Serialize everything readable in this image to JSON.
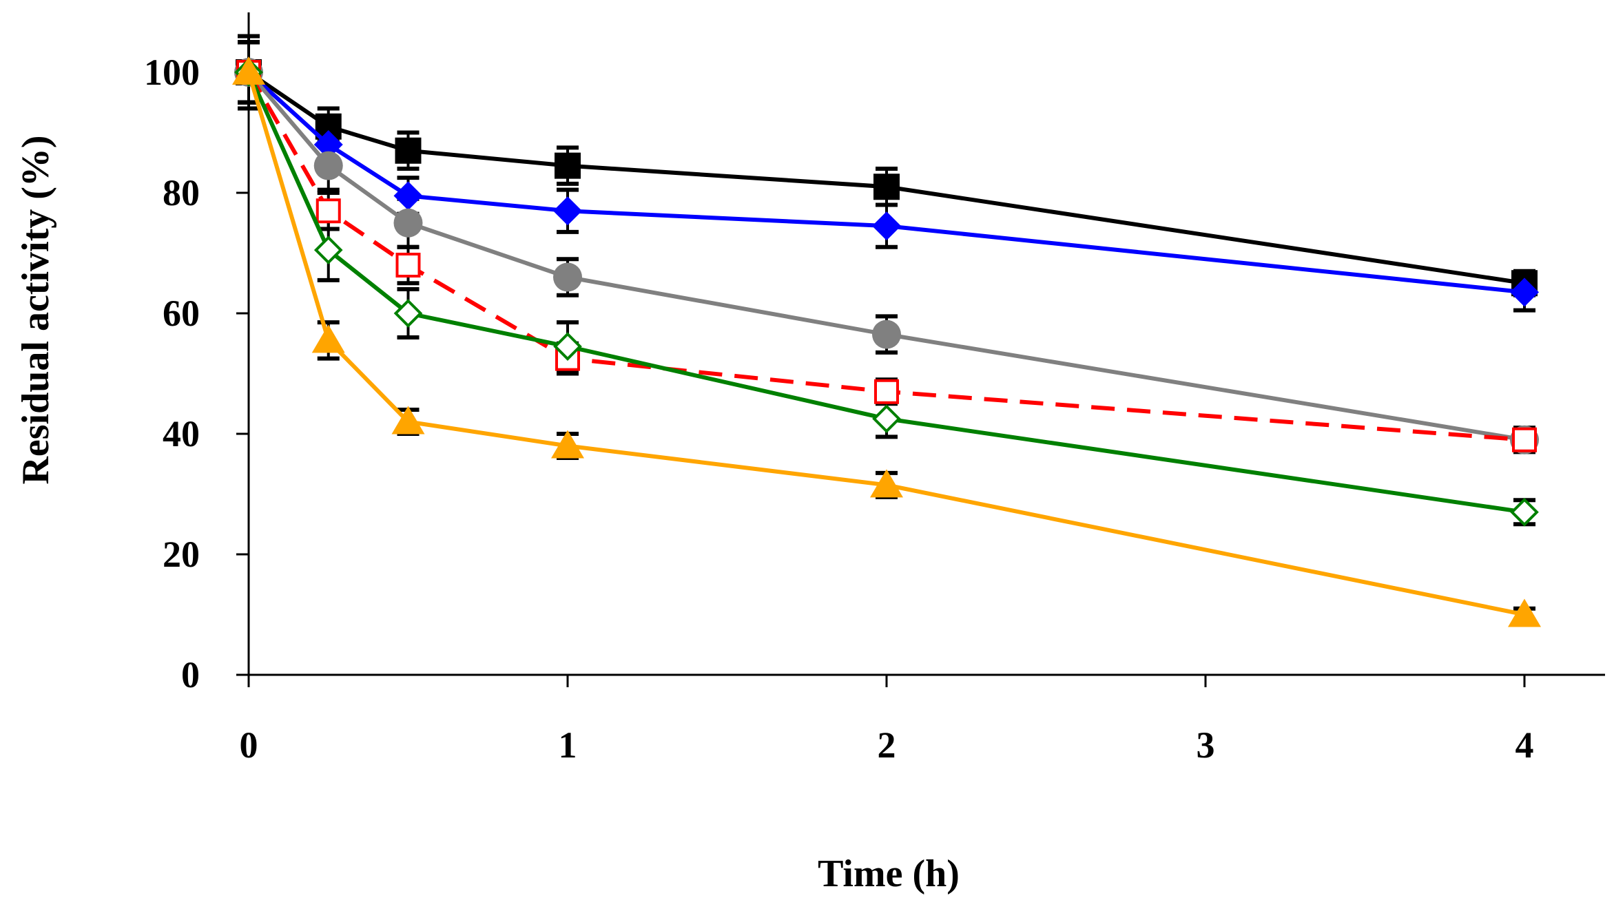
{
  "chart_data": {
    "type": "line",
    "title": "",
    "xlabel": "Time (h)",
    "ylabel": "Residual activity (%)",
    "xlim": [
      0,
      4.25
    ],
    "ylim": [
      0,
      110
    ],
    "x_ticks": [
      "0",
      "1",
      "2",
      "3",
      "4"
    ],
    "y_ticks": [
      "0",
      "20",
      "40",
      "60",
      "80",
      "100"
    ],
    "grid": false,
    "legend": "none",
    "series": [
      {
        "name": "black-filled-square",
        "color": "#000000",
        "marker": "square-filled",
        "dash": "solid",
        "x": [
          0,
          0.25,
          0.5,
          1,
          2,
          4
        ],
        "values": [
          100,
          91,
          87,
          84.5,
          81,
          65
        ],
        "errors": [
          6,
          3,
          3,
          3,
          3,
          2
        ]
      },
      {
        "name": "blue-filled-diamond",
        "color": "#0000ff",
        "marker": "diamond-filled",
        "dash": "solid",
        "x": [
          0,
          0.25,
          0.5,
          1,
          2,
          4
        ],
        "values": [
          100,
          88,
          79.5,
          77,
          74.5,
          63.5
        ],
        "errors": [
          5,
          3,
          3,
          3.5,
          3.5,
          3
        ]
      },
      {
        "name": "gray-filled-circle",
        "color": "#808080",
        "marker": "circle-filled",
        "dash": "solid",
        "x": [
          0,
          0.25,
          0.5,
          1,
          2,
          4
        ],
        "values": [
          100,
          84.5,
          75,
          66,
          56.5,
          39
        ],
        "errors": [
          5,
          4,
          4,
          3,
          3,
          2
        ]
      },
      {
        "name": "red-open-square",
        "color": "#ff0000",
        "marker": "square-open",
        "dash": "dashed",
        "x": [
          0,
          0.25,
          0.5,
          1,
          2,
          4
        ],
        "values": [
          100,
          77,
          68,
          52.5,
          47,
          39
        ],
        "errors": [
          5,
          3,
          3,
          2.5,
          2,
          2
        ]
      },
      {
        "name": "green-open-diamond",
        "color": "#008000",
        "marker": "diamond-open",
        "dash": "solid",
        "x": [
          0,
          0.25,
          0.5,
          1,
          2,
          4
        ],
        "values": [
          100,
          70.5,
          60,
          54.5,
          42.5,
          27
        ],
        "errors": [
          5,
          5,
          4,
          4,
          3,
          2
        ]
      },
      {
        "name": "orange-filled-triangle",
        "color": "#ffa500",
        "marker": "triangle-filled",
        "dash": "solid",
        "x": [
          0,
          0.25,
          0.5,
          1,
          2,
          4
        ],
        "values": [
          100,
          55.5,
          42,
          38,
          31.5,
          10
        ],
        "errors": [
          5,
          3,
          2,
          2,
          2,
          1
        ]
      }
    ]
  }
}
